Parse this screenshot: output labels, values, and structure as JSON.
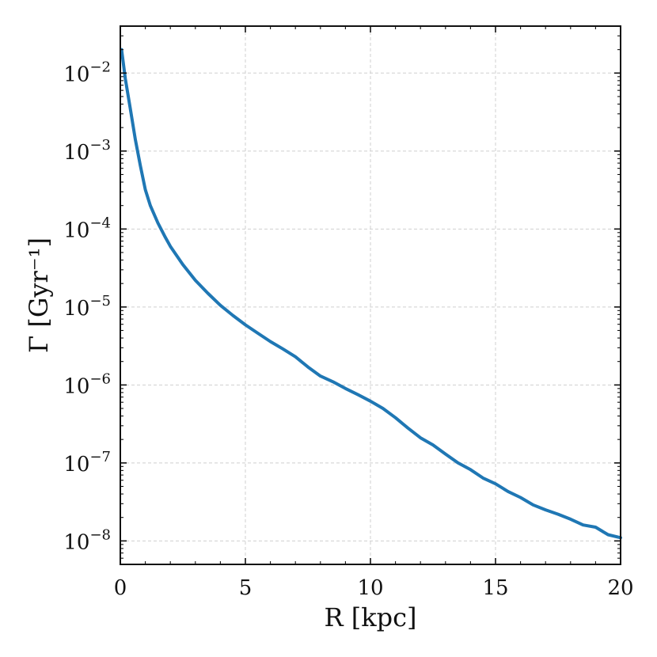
{
  "chart_data": {
    "type": "line",
    "title": "",
    "xlabel": "R [kpc]",
    "ylabel": "Γ [Gyr⁻¹]",
    "xlim": [
      0,
      20
    ],
    "ylim": [
      5e-09,
      0.04
    ],
    "yscale": "log",
    "grid": true,
    "x_ticks": [
      {
        "value": 0,
        "label": "0"
      },
      {
        "value": 5,
        "label": "5"
      },
      {
        "value": 10,
        "label": "10"
      },
      {
        "value": 15,
        "label": "15"
      },
      {
        "value": 20,
        "label": "20"
      }
    ],
    "y_ticks": [
      {
        "value": 1e-08,
        "label": "10",
        "exp": "−8"
      },
      {
        "value": 1e-07,
        "label": "10",
        "exp": "−7"
      },
      {
        "value": 1e-06,
        "label": "10",
        "exp": "−6"
      },
      {
        "value": 1e-05,
        "label": "10",
        "exp": "−5"
      },
      {
        "value": 0.0001,
        "label": "10",
        "exp": "−4"
      },
      {
        "value": 0.001,
        "label": "10",
        "exp": "−3"
      },
      {
        "value": 0.01,
        "label": "10",
        "exp": "−2"
      }
    ],
    "series": [
      {
        "color": "#1f77b4",
        "x": [
          0.05,
          0.2,
          0.4,
          0.6,
          0.8,
          1.0,
          1.2,
          1.5,
          1.8,
          2.0,
          2.5,
          3.0,
          3.5,
          4.0,
          4.5,
          5.0,
          5.5,
          6.0,
          6.5,
          7.0,
          7.5,
          8.0,
          8.5,
          9.0,
          9.5,
          10.0,
          10.5,
          11.0,
          11.5,
          12.0,
          12.5,
          13.0,
          13.5,
          14.0,
          14.5,
          15.0,
          15.5,
          16.0,
          16.5,
          17.0,
          17.5,
          18.0,
          18.5,
          19.0,
          19.5,
          20.0
        ],
        "y": [
          0.02,
          0.0085,
          0.0035,
          0.0014,
          0.00065,
          0.00032,
          0.0002,
          0.00012,
          7.8e-05,
          6e-05,
          3.5e-05,
          2.2e-05,
          1.5e-05,
          1.05e-05,
          7.8e-06,
          5.9e-06,
          4.6e-06,
          3.6e-06,
          2.9e-06,
          2.3e-06,
          1.7e-06,
          1.3e-06,
          1.1e-06,
          9e-07,
          7.5e-07,
          6.2e-07,
          5e-07,
          3.8e-07,
          2.8e-07,
          2.1e-07,
          1.7e-07,
          1.3e-07,
          1e-07,
          8.2e-08,
          6.4e-08,
          5.4e-08,
          4.3e-08,
          3.6e-08,
          2.9e-08,
          2.5e-08,
          2.2e-08,
          1.9e-08,
          1.6e-08,
          1.5e-08,
          1.2e-08,
          1.1e-08
        ]
      }
    ]
  }
}
